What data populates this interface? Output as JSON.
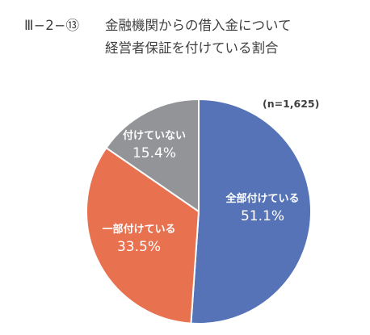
{
  "figure": {
    "number": "Ⅲ−2−⑬",
    "title_line1": "金融機関からの借入金について",
    "title_line2": "経営者保証を付けている割合",
    "sample_size": "(n=1,625)"
  },
  "chart_data": {
    "type": "pie",
    "title": "金融機関からの借入金について経営者保証を付けている割合",
    "start_angle_deg": 0,
    "direction": "clockwise",
    "slices": [
      {
        "label": "全部付けている",
        "value": 51.1,
        "display": "51.1%",
        "color": "#5673b8"
      },
      {
        "label": "一部付けている",
        "value": 33.5,
        "display": "33.5%",
        "color": "#e8714f"
      },
      {
        "label": "付けていない",
        "value": 15.4,
        "display": "15.4%",
        "color": "#929497"
      }
    ]
  }
}
